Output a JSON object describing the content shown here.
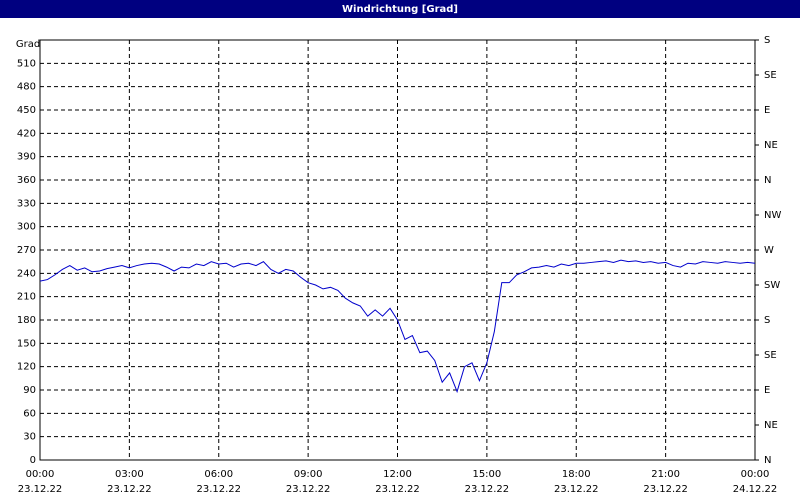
{
  "chart_data": {
    "type": "line",
    "title": "Windrichtung [Grad]",
    "ylabel": "Grad",
    "x": [
      0,
      0.25,
      0.5,
      0.75,
      1,
      1.25,
      1.5,
      1.75,
      2,
      2.25,
      2.5,
      2.75,
      3,
      3.25,
      3.5,
      3.75,
      4,
      4.25,
      4.5,
      4.75,
      5,
      5.25,
      5.5,
      5.75,
      6,
      6.25,
      6.5,
      6.75,
      7,
      7.25,
      7.5,
      7.75,
      8,
      8.25,
      8.5,
      8.75,
      9,
      9.25,
      9.5,
      9.75,
      10,
      10.25,
      10.5,
      10.75,
      11,
      11.25,
      11.5,
      11.75,
      12,
      12.25,
      12.5,
      12.75,
      13,
      13.25,
      13.5,
      13.75,
      14,
      14.25,
      14.5,
      14.75,
      15,
      15.25,
      15.5,
      15.75,
      16,
      16.25,
      16.5,
      16.75,
      17,
      17.25,
      17.5,
      17.75,
      18,
      18.25,
      18.5,
      18.75,
      19,
      19.25,
      19.5,
      19.75,
      20,
      20.25,
      20.5,
      20.75,
      21,
      21.25,
      21.5,
      21.75,
      22,
      22.25,
      22.5,
      22.75,
      23,
      23.25,
      23.5,
      23.75,
      24
    ],
    "values": [
      230,
      232,
      238,
      245,
      250,
      244,
      247,
      242,
      243,
      246,
      248,
      250,
      247,
      250,
      252,
      253,
      252,
      248,
      243,
      248,
      247,
      252,
      250,
      255,
      252,
      253,
      248,
      252,
      253,
      250,
      255,
      245,
      240,
      245,
      243,
      235,
      228,
      225,
      220,
      222,
      218,
      208,
      202,
      198,
      185,
      193,
      185,
      195,
      180,
      155,
      160,
      138,
      140,
      128,
      100,
      112,
      88,
      120,
      125,
      102,
      125,
      165,
      228,
      228,
      238,
      242,
      247,
      248,
      250,
      248,
      252,
      250,
      253,
      253,
      254,
      255,
      256,
      254,
      257,
      255,
      256,
      254,
      255,
      253,
      254,
      250,
      248,
      253,
      252,
      255,
      254,
      253,
      255,
      254,
      253,
      254,
      253
    ],
    "color": "#0000cc",
    "xlim": [
      0,
      24
    ],
    "xticks": [
      {
        "value": 0,
        "label": "00:00",
        "date": "23.12.22"
      },
      {
        "value": 3,
        "label": "03:00",
        "date": "23.12.22"
      },
      {
        "value": 6,
        "label": "06:00",
        "date": "23.12.22"
      },
      {
        "value": 9,
        "label": "09:00",
        "date": "23.12.22"
      },
      {
        "value": 12,
        "label": "12:00",
        "date": "23.12.22"
      },
      {
        "value": 15,
        "label": "15:00",
        "date": "23.12.22"
      },
      {
        "value": 18,
        "label": "18:00",
        "date": "23.12.22"
      },
      {
        "value": 21,
        "label": "21:00",
        "date": "23.12.22"
      },
      {
        "value": 24,
        "label": "00:00",
        "date": "24.12.22"
      }
    ],
    "ylim": [
      0,
      540
    ],
    "yticks": [
      0,
      30,
      60,
      90,
      120,
      150,
      180,
      210,
      240,
      270,
      300,
      330,
      360,
      390,
      420,
      450,
      480,
      510
    ],
    "y2lim": [
      0,
      540
    ],
    "y2ticks": [
      {
        "value": 0,
        "label": "N"
      },
      {
        "value": 45,
        "label": "NE"
      },
      {
        "value": 90,
        "label": "E"
      },
      {
        "value": 135,
        "label": "SE"
      },
      {
        "value": 180,
        "label": "S"
      },
      {
        "value": 225,
        "label": "SW"
      },
      {
        "value": 270,
        "label": "W"
      },
      {
        "value": 315,
        "label": "NW"
      },
      {
        "value": 360,
        "label": "N"
      },
      {
        "value": 405,
        "label": "NE"
      },
      {
        "value": 450,
        "label": "E"
      },
      {
        "value": 495,
        "label": "SE"
      },
      {
        "value": 540,
        "label": "S"
      }
    ],
    "grid": true
  }
}
